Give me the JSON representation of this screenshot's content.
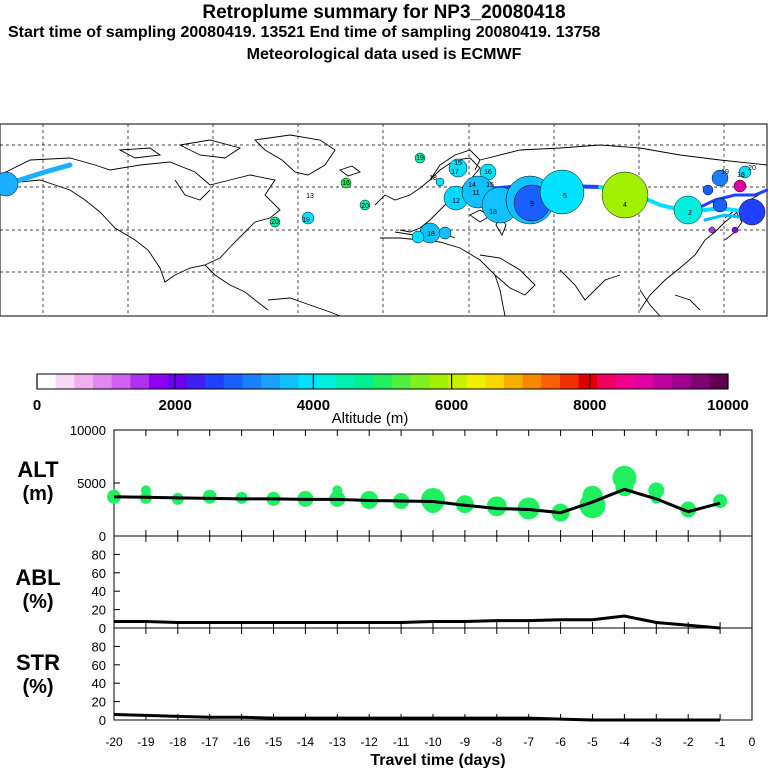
{
  "header": {
    "title": "Retroplume summary for NP3_20080418",
    "sampling": "Start time of sampling 20080419. 13521     End time of sampling 20080419. 13758",
    "met": "Meteorological data used is ECMWF"
  },
  "colorbar": {
    "label": "Altitude (m)",
    "ticks": [
      "0",
      "2000",
      "4000",
      "6000",
      "8000",
      "10000"
    ],
    "colors": [
      "#ffffff",
      "#f7d8f7",
      "#efb0ef",
      "#e089f0",
      "#d060f0",
      "#b030f0",
      "#9000f0",
      "#6a00f0",
      "#4020f0",
      "#2040ff",
      "#1a60ff",
      "#1a80ff",
      "#1aa0ff",
      "#10c0ff",
      "#00e0ff",
      "#00f0e0",
      "#00f0b0",
      "#00f090",
      "#20f060",
      "#50f040",
      "#80f020",
      "#a0f000",
      "#c8f000",
      "#f0f000",
      "#f8d800",
      "#f8b000",
      "#f88800",
      "#f86000",
      "#f03000",
      "#e00000",
      "#f00060",
      "#f00090",
      "#e000a0",
      "#c000a0",
      "#a00090",
      "#800070",
      "#600050"
    ]
  },
  "map": {
    "labels": [
      {
        "t": "19",
        "x": 420,
        "y": 158
      },
      {
        "t": "15",
        "x": 458,
        "y": 163
      },
      {
        "t": "17",
        "x": 455,
        "y": 172
      },
      {
        "t": "16",
        "x": 488,
        "y": 172
      },
      {
        "t": "18",
        "x": 433,
        "y": 178
      },
      {
        "t": "14",
        "x": 472,
        "y": 185
      },
      {
        "t": "15",
        "x": 490,
        "y": 185
      },
      {
        "t": "12",
        "x": 456,
        "y": 201
      },
      {
        "t": "11",
        "x": 476,
        "y": 193
      },
      {
        "t": "13",
        "x": 493,
        "y": 212
      },
      {
        "t": "9",
        "x": 532,
        "y": 204
      },
      {
        "t": "5",
        "x": 565,
        "y": 196
      },
      {
        "t": "4",
        "x": 625,
        "y": 205
      },
      {
        "t": "2",
        "x": 690,
        "y": 213
      },
      {
        "t": "19",
        "x": 725,
        "y": 172
      },
      {
        "t": "20",
        "x": 752,
        "y": 168
      },
      {
        "t": "18",
        "x": 741,
        "y": 175
      },
      {
        "t": "13",
        "x": 310,
        "y": 196
      },
      {
        "t": "16",
        "x": 346,
        "y": 183
      },
      {
        "t": "20",
        "x": 275,
        "y": 222
      },
      {
        "t": "19",
        "x": 306,
        "y": 220
      },
      {
        "t": "20",
        "x": 365,
        "y": 206
      },
      {
        "t": "18",
        "x": 431,
        "y": 234
      }
    ]
  },
  "panels": {
    "alt": {
      "line1": "ALT",
      "line2": "(m)",
      "ticks": [
        "0",
        "5000",
        "10000"
      ]
    },
    "abl": {
      "line1": "ABL",
      "line2": "(%)",
      "ticks": [
        "0",
        "20",
        "40",
        "60",
        "80"
      ]
    },
    "str": {
      "line1": "STR",
      "line2": "(%)",
      "ticks": [
        "0",
        "20",
        "40",
        "60",
        "80"
      ]
    },
    "xticks": [
      "-20",
      "-19",
      "-18",
      "-17",
      "-16",
      "-15",
      "-14",
      "-13",
      "-12",
      "-11",
      "-10",
      "-9",
      "-8",
      "-7",
      "-6",
      "-5",
      "-4",
      "-3",
      "-2",
      "-1",
      "0"
    ],
    "xlabel": "Travel time (days)"
  },
  "chart_data": [
    {
      "type": "line",
      "title": "ALT",
      "ylabel": "ALT (m)",
      "xlabel": "Travel time (days)",
      "xlim": [
        -20,
        0
      ],
      "ylim": [
        0,
        10000
      ],
      "x": [
        -20,
        -19,
        -18,
        -17,
        -16,
        -15,
        -14,
        -13,
        -12,
        -11,
        -10,
        -9,
        -8,
        -7,
        -6,
        -5,
        -4,
        -3,
        -2,
        -1
      ],
      "series": [
        {
          "name": "mean altitude",
          "values": [
            3700,
            3650,
            3600,
            3550,
            3500,
            3500,
            3450,
            3450,
            3350,
            3300,
            3250,
            2900,
            2600,
            2500,
            2200,
            3200,
            4400,
            3500,
            2300,
            3100
          ]
        }
      ],
      "scatter_x": [
        -20,
        -19,
        -19,
        -18,
        -17,
        -16,
        -15,
        -14,
        -13,
        -13,
        -12,
        -11,
        -10,
        -10,
        -9,
        -8,
        -7,
        -6,
        -5,
        -5,
        -4,
        -4,
        -3,
        -3,
        -2,
        -1
      ],
      "scatter_y": [
        3700,
        3600,
        4300,
        3500,
        3700,
        3600,
        3500,
        3500,
        3500,
        4300,
        3400,
        3300,
        3400,
        3000,
        3000,
        2800,
        2600,
        2200,
        2900,
        3800,
        4600,
        5500,
        4300,
        3500,
        2500,
        3300
      ],
      "scatter_size": [
        7,
        6,
        5,
        6,
        7,
        6,
        7,
        8,
        8,
        5,
        9,
        8,
        12,
        9,
        9,
        10,
        11,
        9,
        13,
        10,
        9,
        12,
        8,
        5,
        8,
        7
      ]
    },
    {
      "type": "line",
      "title": "ABL",
      "ylabel": "ABL (%)",
      "xlim": [
        -20,
        0
      ],
      "ylim": [
        0,
        100
      ],
      "x": [
        -20,
        -19,
        -18,
        -17,
        -16,
        -15,
        -14,
        -13,
        -12,
        -11,
        -10,
        -9,
        -8,
        -7,
        -6,
        -5,
        -4,
        -3,
        -2,
        -1
      ],
      "series": [
        {
          "name": "ABL",
          "values": [
            7,
            7,
            6,
            6,
            6,
            6,
            6,
            6,
            6,
            6,
            7,
            7,
            8,
            8,
            9,
            9,
            13,
            6,
            3,
            0
          ]
        }
      ]
    },
    {
      "type": "line",
      "title": "STR",
      "ylabel": "STR (%)",
      "xlim": [
        -20,
        0
      ],
      "ylim": [
        0,
        100
      ],
      "x": [
        -20,
        -19,
        -18,
        -17,
        -16,
        -15,
        -14,
        -13,
        -12,
        -11,
        -10,
        -9,
        -8,
        -7,
        -6,
        -5,
        -4,
        -3,
        -2,
        -1
      ],
      "series": [
        {
          "name": "STR",
          "values": [
            6,
            5,
            4,
            3,
            3,
            2,
            2,
            2,
            2,
            2,
            2,
            2,
            2,
            2,
            1,
            0,
            0,
            0,
            0,
            0
          ]
        }
      ]
    }
  ]
}
